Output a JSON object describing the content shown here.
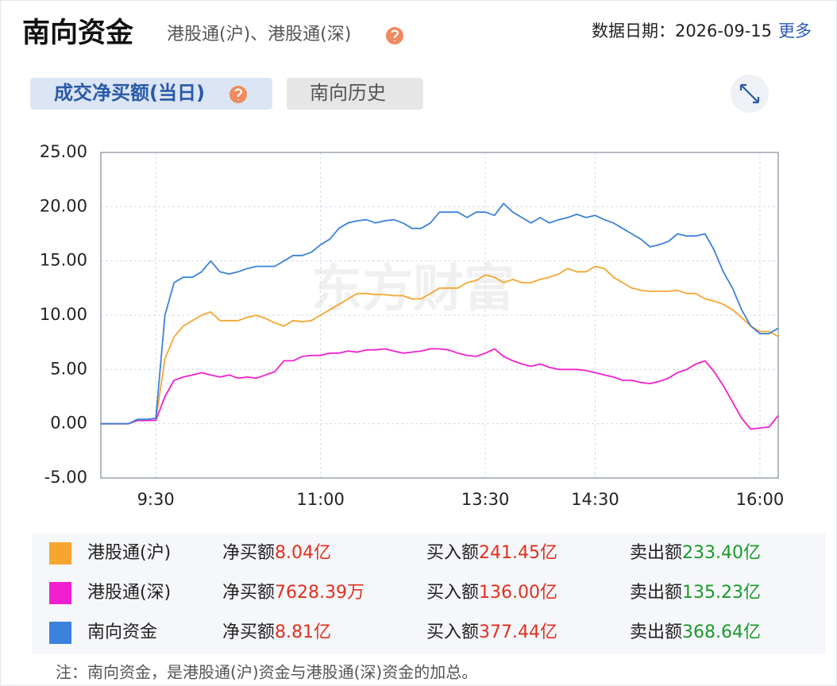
{
  "header": {
    "title": "南向资金",
    "subtitle": "港股通(沪)、港股通(深)",
    "date_label": "数据日期：2026-09-15",
    "more": "更多"
  },
  "tabs": [
    "成交净买额(当日)",
    "南向历史"
  ],
  "chart_data": {
    "type": "line",
    "watermark": "东方财富",
    "x": [
      0,
      5,
      10,
      15,
      20,
      25,
      30,
      35,
      40,
      45,
      50,
      55,
      60,
      65,
      70,
      75,
      80,
      85,
      90,
      95,
      100,
      105,
      110,
      115,
      120,
      125,
      130,
      135,
      140,
      145,
      150,
      155,
      160,
      165,
      170,
      175,
      180,
      185,
      190,
      195,
      200,
      205,
      210,
      215,
      220,
      225,
      230,
      235,
      240,
      245,
      250,
      255,
      260,
      265,
      270,
      275,
      280,
      285,
      290,
      295,
      300,
      305,
      310,
      315,
      320,
      325,
      330,
      335,
      340,
      345,
      350,
      355,
      360,
      365,
      370
    ],
    "xlim": [
      0,
      370
    ],
    "xticks": [
      {
        "value": 30,
        "label": "9:30"
      },
      {
        "value": 120,
        "label": "11:00"
      },
      {
        "value": 210,
        "label": "13:30"
      },
      {
        "value": 270,
        "label": "14:30"
      },
      {
        "value": 360,
        "label": "16:00"
      }
    ],
    "ylim": [
      -5,
      25
    ],
    "yticks": [
      {
        "value": -5,
        "label": "-5.00"
      },
      {
        "value": 0,
        "label": "0.00"
      },
      {
        "value": 5,
        "label": "5.00"
      },
      {
        "value": 10,
        "label": "10.00"
      },
      {
        "value": 15,
        "label": "15.00"
      },
      {
        "value": 20,
        "label": "20.00"
      },
      {
        "value": 25,
        "label": "25.00"
      }
    ],
    "grid": true,
    "series": [
      {
        "name": "港股通(沪)",
        "color": "#f5a631",
        "values": [
          0,
          0,
          0,
          0,
          0.3,
          0.3,
          0.3,
          6,
          8,
          9,
          9.5,
          10,
          10.3,
          9.5,
          9.5,
          9.5,
          9.8,
          10,
          9.7,
          9.3,
          9,
          9.5,
          9.4,
          9.5,
          10,
          10.5,
          11,
          11.5,
          12,
          12,
          11.9,
          11.9,
          11.8,
          11.8,
          11.5,
          11.5,
          12,
          12.5,
          12.5,
          12.5,
          13,
          13.2,
          13.7,
          13.5,
          13,
          13.3,
          13,
          13,
          13.3,
          13.5,
          13.8,
          14.3,
          14,
          14,
          14.5,
          14.3,
          13.5,
          13,
          12.5,
          12.3,
          12.2,
          12.2,
          12.2,
          12.3,
          12,
          12,
          11.5,
          11.3,
          11,
          10.5,
          9.8,
          9,
          8.5,
          8.5,
          8.04
        ]
      },
      {
        "name": "港股通(深)",
        "color": "#f020d0",
        "values": [
          0,
          0,
          0,
          0,
          0.3,
          0.3,
          0.3,
          2.5,
          4,
          4.3,
          4.5,
          4.7,
          4.5,
          4.3,
          4.5,
          4.2,
          4.3,
          4.2,
          4.5,
          4.8,
          5.8,
          5.8,
          6.2,
          6.3,
          6.3,
          6.5,
          6.5,
          6.7,
          6.6,
          6.8,
          6.8,
          6.9,
          6.7,
          6.5,
          6.6,
          6.7,
          6.9,
          6.9,
          6.8,
          6.5,
          6.3,
          6.2,
          6.5,
          6.9,
          6.2,
          5.8,
          5.5,
          5.3,
          5.5,
          5.2,
          5,
          5,
          5,
          4.9,
          4.7,
          4.5,
          4.3,
          4,
          4,
          3.8,
          3.7,
          3.9,
          4.2,
          4.7,
          5,
          5.5,
          5.8,
          4.8,
          3.5,
          2,
          0.5,
          -0.5,
          -0.4,
          -0.3,
          0.76
        ]
      },
      {
        "name": "南向资金",
        "color": "#3b82dc",
        "values": [
          0,
          0,
          0,
          0,
          0.4,
          0.4,
          0.5,
          10,
          13,
          13.5,
          13.5,
          14,
          15,
          14,
          13.8,
          14,
          14.3,
          14.5,
          14.5,
          14.5,
          15,
          15.5,
          15.5,
          15.8,
          16.5,
          17,
          18,
          18.5,
          18.7,
          18.8,
          18.5,
          18.7,
          18.8,
          18.5,
          18,
          18,
          18.5,
          19.5,
          19.5,
          19.5,
          19,
          19.5,
          19.5,
          19.2,
          20.3,
          19.5,
          19,
          18.5,
          19,
          18.5,
          18.8,
          19,
          19.3,
          19,
          19.2,
          18.8,
          18.5,
          18,
          17.5,
          17,
          16.3,
          16.5,
          16.8,
          17.5,
          17.3,
          17.3,
          17.5,
          16,
          14,
          12.5,
          10.5,
          9,
          8.3,
          8.3,
          8.81
        ]
      }
    ]
  },
  "summary": {
    "rows": [
      {
        "net_label": "净买额",
        "net": "8.04亿",
        "buy_label": "买入额",
        "buy": "241.45亿",
        "sell_label": "卖出额",
        "sell": "233.40亿"
      },
      {
        "net_label": "净买额",
        "net": "7628.39万",
        "buy_label": "买入额",
        "buy": "136.00亿",
        "sell_label": "卖出额",
        "sell": "135.23亿"
      },
      {
        "net_label": "净买额",
        "net": "8.81亿",
        "buy_label": "买入额",
        "buy": "377.44亿",
        "sell_label": "卖出额",
        "sell": "368.64亿"
      }
    ]
  },
  "note": "注：南向资金，是港股通(沪)资金与港股通(深)资金的加总。"
}
